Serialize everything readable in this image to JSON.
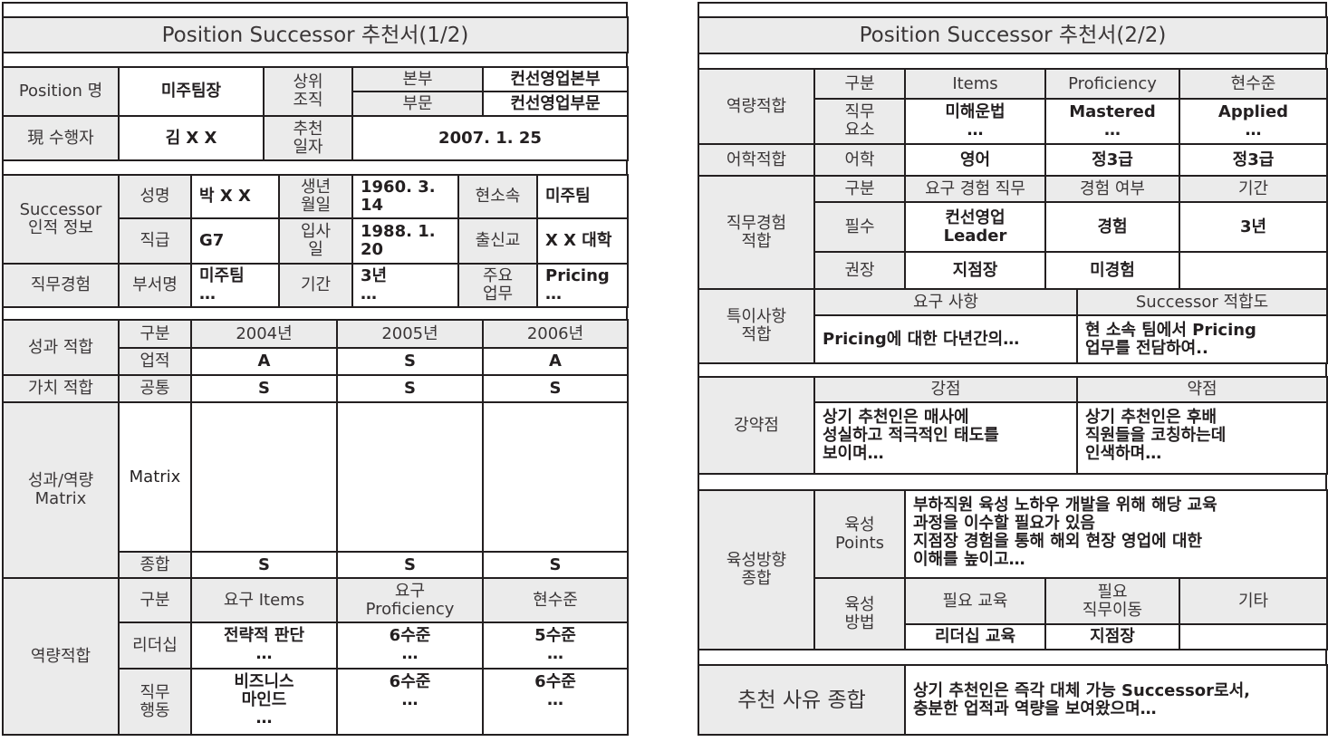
{
  "left": {
    "title": "Position Successor 추천서(1/2)",
    "position": {
      "label": "Position 명",
      "value": "미주팀장",
      "parent_org_label": "상위\n조직",
      "division_label": "본부",
      "division_value": "컨선영업본부",
      "sector_label": "부문",
      "sector_value": "컨선영업부문",
      "incumbent_label": "現 수행자",
      "incumbent_value": "김 X X",
      "date_label": "추천\n일자",
      "date_value": "2007. 1. 25"
    },
    "successor": {
      "section_label": "Successor\n인적 정보",
      "name_label": "성명",
      "name_value": "박 X X",
      "birth_label": "생년\n월일",
      "birth_value": "1960. 3. 14",
      "team_label": "현소속",
      "team_value": "미주팀",
      "grade_label": "직급",
      "grade_value": "G7",
      "join_label": "입사\n일",
      "join_value": "1988. 1. 20",
      "school_label": "출신교",
      "school_value": "X X 대학",
      "exp_label": "직무경험",
      "dept_label": "부서명",
      "dept_value": "미주팀\n…",
      "period_label": "기간",
      "period_value": "3년\n…",
      "duty_label": "주요\n업무",
      "duty_value": "Pricing\n…"
    },
    "performance": {
      "section_label": "성과 적합",
      "category_label": "구분",
      "years": [
        "2004년",
        "2005년",
        "2006년"
      ],
      "achievement_label": "업적",
      "achievement": [
        "A",
        "S",
        "A"
      ],
      "value_section_label": "가치 적합",
      "common_label": "공통",
      "common": [
        "S",
        "S",
        "S"
      ],
      "matrix_section_label": "성과/역량\nMatrix",
      "matrix_label": "Matrix",
      "overall_label": "종합",
      "overall": [
        "S",
        "S",
        "S"
      ]
    },
    "competency": {
      "section_label": "역량적합",
      "headers": [
        "구분",
        "요구 Items",
        "요구\nProficiency",
        "현수준"
      ],
      "rows": [
        [
          "리더십",
          "전략적 판단\n…",
          "6수준\n…",
          "5수준\n…"
        ],
        [
          "직무\n행동",
          "비즈니스\n마인드\n…",
          "6수준\n…",
          "6수준\n…"
        ]
      ]
    }
  },
  "right": {
    "title": "Position Successor 추천서(2/2)",
    "competency": {
      "section_label": "역량적합",
      "headers": [
        "구분",
        "Items",
        "Proficiency",
        "현수준"
      ],
      "row": [
        "직무\n요소",
        "미해운법\n…",
        "Mastered\n…",
        "Applied\n…"
      ]
    },
    "language": {
      "section_label": "어학적합",
      "row": [
        "어학",
        "영어",
        "정3급",
        "정3급"
      ]
    },
    "experience": {
      "section_label": "직무경험\n적합",
      "headers": [
        "구분",
        "요구 경험 직무",
        "경험 여부",
        "기간"
      ],
      "rows": [
        [
          "필수",
          "컨선영업\nLeader",
          "경험",
          "3년"
        ],
        [
          "권장",
          "지점장",
          "미경험",
          ""
        ]
      ]
    },
    "special": {
      "section_label": "특이사항\n적합",
      "headers": [
        "요구 사항",
        "Successor 적합도"
      ],
      "values": [
        "Pricing에 대한 다년간의…",
        "현 소속 팀에서 Pricing\n업무를 전담하여.."
      ]
    },
    "strengths": {
      "section_label": "강약점",
      "headers": [
        "강점",
        "약점"
      ],
      "values": [
        "상기 추천인은 매사에\n성실하고 적극적인 태도를\n보이며…",
        "상기 추천인은 후배\n직원들을 코칭하는데\n인색하며…"
      ]
    },
    "development": {
      "section_label": "육성방향\n종합",
      "points_label": "육성\nPoints",
      "points_value": "부하직원 육성 노하우 개발을 위해 해당 교육\n과정을 이수할 필요가 있음\n지점장 경험을 통해 해외 현장 영업에 대한\n이해를 높이고…",
      "method_label": "육성\n방법",
      "method_headers": [
        "필요 교육",
        "필요\n직무이동",
        "기타"
      ],
      "method_values": [
        "리더십 교육",
        "지점장",
        ""
      ]
    },
    "summary": {
      "label": "추천 사유 종합",
      "value": "상기 추천인은 즉각 대체 가능 Successor로서,\n충분한 업적과 역량을 보여왔으며…"
    }
  }
}
